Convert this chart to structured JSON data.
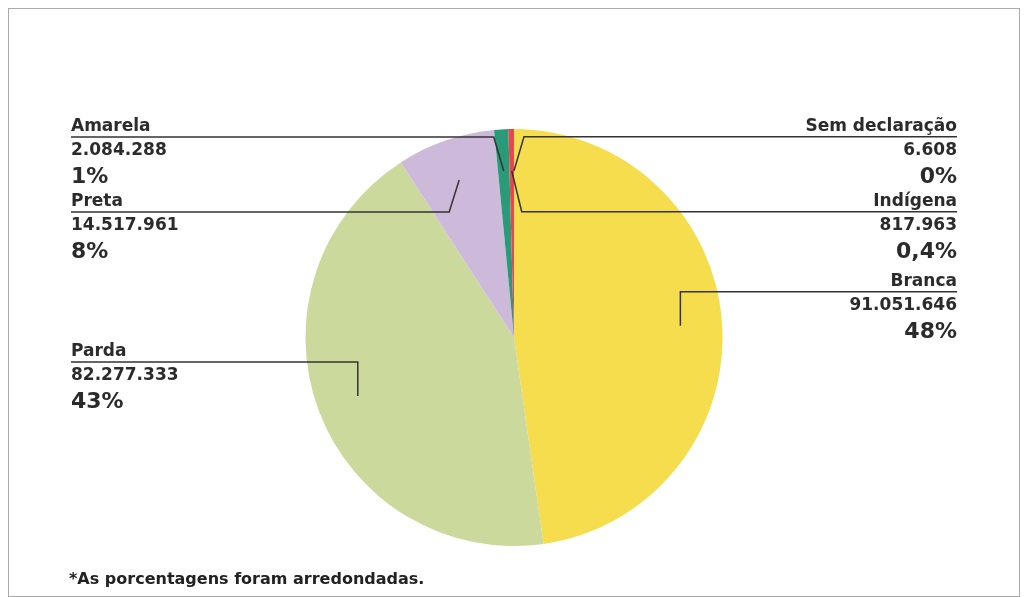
{
  "chart_data": {
    "type": "pie",
    "categories": [
      "Branca",
      "Parda",
      "Preta",
      "Amarela",
      "Indígena",
      "Sem declaração"
    ],
    "values": [
      91051646,
      82277333,
      14517961,
      2084288,
      817963,
      6608
    ],
    "value_labels": [
      "91.051.646\n48%",
      "82.277.333\n43%",
      "14.517.961\n8%",
      "2.084.288\n1%",
      "817.963\n0,4%",
      "6.608\n0%"
    ],
    "colors": [
      "#f6dd4d",
      "#ccd99d",
      "#cdbadb",
      "#2a9a78",
      "#e8474a",
      "#555555"
    ],
    "legend": false,
    "annotations": [
      "*As porcentagens foram arredondadas."
    ]
  }
}
